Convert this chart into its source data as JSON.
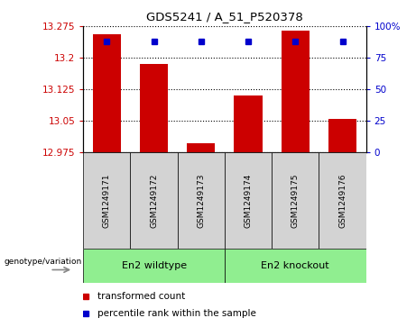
{
  "title": "GDS5241 / A_51_P520378",
  "samples": [
    "GSM1249171",
    "GSM1249172",
    "GSM1249173",
    "GSM1249174",
    "GSM1249175",
    "GSM1249176"
  ],
  "bar_values": [
    13.255,
    13.185,
    12.995,
    13.11,
    13.265,
    13.055
  ],
  "percentile_values": [
    88,
    88,
    88,
    88,
    88,
    88
  ],
  "bar_bottom": 12.975,
  "ylim": [
    12.975,
    13.275
  ],
  "y2lim": [
    0,
    100
  ],
  "yticks": [
    12.975,
    13.05,
    13.125,
    13.2,
    13.275
  ],
  "y2ticks": [
    0,
    25,
    50,
    75,
    100
  ],
  "bar_color": "#cc0000",
  "dot_color": "#0000cc",
  "group1_label": "En2 wildtype",
  "group2_label": "En2 knockout",
  "group1_indices": [
    0,
    1,
    2
  ],
  "group2_indices": [
    3,
    4,
    5
  ],
  "group_bg": "#90ee90",
  "legend_bar_label": "transformed count",
  "legend_dot_label": "percentile rank within the sample",
  "genotype_label": "genotype/variation",
  "sample_bg": "#d3d3d3",
  "bar_width": 0.6,
  "fig_width": 4.61,
  "fig_height": 3.63
}
